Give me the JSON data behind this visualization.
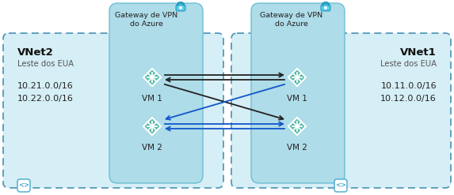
{
  "bg_color": "#cde8f0",
  "subnet_color": "#aedce8",
  "subnet_border_color": "#6bbfd4",
  "outer_border_color": "#5599bb",
  "outer_fill": "#d6eef5",
  "arrow_dark": "#222222",
  "arrow_blue": "#1155cc",
  "vnet2_label": "VNet2",
  "vnet2_sub1": "Leste dos EUA",
  "vnet2_sub2": "10.21.0.0/16",
  "vnet2_sub3": "10.22.0.0/16",
  "vnet1_label": "VNet1",
  "vnet1_sub1": "Leste dos EUA",
  "vnet1_sub2": "10.11.0.0/16",
  "vnet1_sub3": "10.12.0.0/16",
  "gw_label1": "Gateway de VPN",
  "gw_label2": "do Azure",
  "vm_label1": "VM 1",
  "vm_label2": "VM 2",
  "fig_w": 5.73,
  "fig_h": 2.47,
  "dpi": 100
}
